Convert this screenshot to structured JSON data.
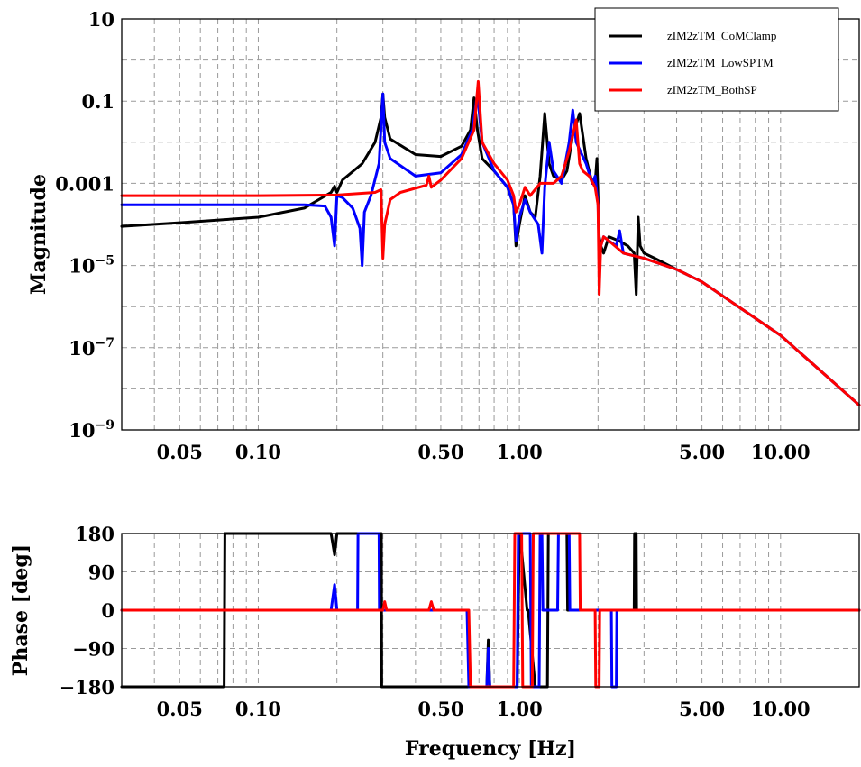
{
  "chart_data": [
    {
      "type": "line",
      "title": "",
      "xlabel": "",
      "ylabel": "Magnitude",
      "x_scale": "log",
      "y_scale": "log",
      "xlim": [
        0.03,
        20
      ],
      "ylim": [
        1e-09,
        10
      ],
      "x_ticks": [
        0.05,
        0.1,
        0.5,
        1.0,
        5.0,
        10.0
      ],
      "x_tick_labels": [
        "0.05",
        "0.10",
        "0.50",
        "1.00",
        "5.00",
        "10.00"
      ],
      "y_ticks": [
        1e-09,
        1e-07,
        1e-05,
        0.001,
        0.1,
        10
      ],
      "y_tick_labels": [
        {
          "base": "10",
          "exp": "−9"
        },
        {
          "base": "10",
          "exp": "−7"
        },
        {
          "base": "10",
          "exp": "−5"
        },
        {
          "base": "0.001",
          "exp": ""
        },
        {
          "base": "0.1",
          "exp": ""
        },
        {
          "base": "10",
          "exp": ""
        }
      ],
      "grid": true,
      "legend_position": "top-right",
      "series": [
        {
          "name": "zIM2zTM_CoMClamp",
          "color": "#000000",
          "x": [
            0.03,
            0.05,
            0.1,
            0.15,
            0.19,
            0.196,
            0.2,
            0.21,
            0.25,
            0.28,
            0.295,
            0.3,
            0.305,
            0.32,
            0.4,
            0.5,
            0.6,
            0.65,
            0.67,
            0.69,
            0.72,
            0.8,
            0.9,
            0.95,
            0.97,
            1.0,
            1.05,
            1.1,
            1.15,
            1.2,
            1.25,
            1.3,
            1.35,
            1.45,
            1.52,
            1.6,
            1.7,
            1.8,
            1.9,
            1.95,
            1.98,
            2.0,
            2.02,
            2.05,
            2.1,
            2.2,
            2.4,
            2.6,
            2.75,
            2.8,
            2.85,
            2.9,
            3.0,
            3.3,
            4,
            5,
            10,
            20
          ],
          "y": [
            9e-05,
            0.00011,
            0.00015,
            0.00025,
            0.0006,
            0.00085,
            0.0006,
            0.0012,
            0.003,
            0.01,
            0.04,
            0.15,
            0.04,
            0.012,
            0.005,
            0.0045,
            0.008,
            0.02,
            0.12,
            0.02,
            0.004,
            0.002,
            0.0008,
            0.0003,
            3e-05,
            0.0001,
            0.0005,
            0.0002,
            0.00015,
            0.0015,
            0.05,
            0.003,
            0.0015,
            0.0012,
            0.002,
            0.015,
            0.05,
            0.004,
            0.001,
            0.001,
            0.004,
            0.0005,
            5e-05,
            3e-05,
            2e-05,
            5e-05,
            4e-05,
            3e-05,
            2e-05,
            2e-06,
            0.00015,
            3e-05,
            2e-05,
            1.5e-05,
            8e-06,
            4e-06,
            2e-07,
            4e-09
          ]
        },
        {
          "name": "zIM2zTM_LowSPTM",
          "color": "#0000ff",
          "x": [
            0.03,
            0.1,
            0.15,
            0.18,
            0.19,
            0.196,
            0.2,
            0.21,
            0.23,
            0.245,
            0.25,
            0.255,
            0.27,
            0.29,
            0.3,
            0.305,
            0.32,
            0.4,
            0.5,
            0.6,
            0.66,
            0.69,
            0.72,
            0.8,
            0.9,
            0.95,
            0.97,
            1.0,
            1.05,
            1.1,
            1.18,
            1.22,
            1.25,
            1.3,
            1.35,
            1.45,
            1.55,
            1.6,
            1.65,
            1.8,
            1.9,
            1.95,
            2.0,
            2.02,
            2.05,
            2.1,
            2.2,
            2.35,
            2.42,
            2.5,
            3.0,
            4,
            5,
            10,
            20
          ],
          "y": [
            0.0003,
            0.0003,
            0.0003,
            0.00028,
            0.00015,
            3e-05,
            0.0005,
            0.00045,
            0.00025,
            8e-05,
            1e-05,
            0.0002,
            0.0005,
            0.003,
            0.15,
            0.01,
            0.004,
            0.0015,
            0.0018,
            0.005,
            0.02,
            0.15,
            0.01,
            0.002,
            0.0008,
            0.0003,
            4e-05,
            0.00015,
            0.0004,
            0.0002,
            0.0001,
            2e-05,
            0.0008,
            0.01,
            0.002,
            0.001,
            0.01,
            0.06,
            0.01,
            0.003,
            0.001,
            0.0015,
            0.0003,
            2e-05,
            3e-05,
            5e-05,
            4e-05,
            3e-05,
            7e-05,
            2e-05,
            1.5e-05,
            8e-06,
            4e-06,
            2e-07,
            4e-09
          ]
        },
        {
          "name": "zIM2zTM_BothSP",
          "color": "#ff0000",
          "x": [
            0.03,
            0.1,
            0.2,
            0.28,
            0.295,
            0.3,
            0.305,
            0.32,
            0.35,
            0.44,
            0.45,
            0.46,
            0.5,
            0.6,
            0.67,
            0.695,
            0.72,
            0.8,
            0.9,
            0.95,
            0.97,
            1.0,
            1.05,
            1.1,
            1.2,
            1.35,
            1.45,
            1.55,
            1.65,
            1.7,
            1.75,
            1.85,
            1.95,
            2.0,
            2.02,
            2.05,
            2.1,
            2.2,
            2.5,
            3.0,
            4,
            5,
            10,
            20
          ],
          "y": [
            0.0005,
            0.0005,
            0.00052,
            0.0006,
            0.0007,
            1.5e-05,
            0.0001,
            0.0004,
            0.0006,
            0.0009,
            0.0015,
            0.0008,
            0.0012,
            0.004,
            0.02,
            0.3,
            0.01,
            0.003,
            0.0012,
            0.0005,
            0.0002,
            0.0003,
            0.0008,
            0.0005,
            0.001,
            0.001,
            0.0015,
            0.006,
            0.035,
            0.003,
            0.002,
            0.0015,
            0.0008,
            0.0003,
            2e-06,
            3e-05,
            5e-05,
            4e-05,
            2e-05,
            1.5e-05,
            8e-06,
            4e-06,
            2e-07,
            4e-09
          ]
        }
      ]
    },
    {
      "type": "line",
      "title": "",
      "xlabel": "Frequency [Hz]",
      "ylabel": "Phase [deg]",
      "x_scale": "log",
      "xlim": [
        0.03,
        20
      ],
      "ylim": [
        -180,
        180
      ],
      "x_ticks": [
        0.05,
        0.1,
        0.5,
        1.0,
        5.0,
        10.0
      ],
      "x_tick_labels": [
        "0.05",
        "0.10",
        "0.50",
        "1.00",
        "5.00",
        "10.00"
      ],
      "y_ticks": [
        180,
        90,
        0,
        -90,
        -180
      ],
      "y_tick_labels": [
        "180",
        "90",
        "0",
        "−90",
        "−180"
      ],
      "grid": true,
      "series": [
        {
          "name": "zIM2zTM_CoMClamp",
          "color": "#000000",
          "x": [
            0.03,
            0.074,
            0.0745,
            0.19,
            0.196,
            0.2,
            0.296,
            0.297,
            0.62,
            0.64,
            0.68,
            0.695,
            0.72,
            0.75,
            0.76,
            0.77,
            0.9,
            0.98,
            1.0,
            1.005,
            1.07,
            1.08,
            1.15,
            1.16,
            1.28,
            1.29,
            1.52,
            1.53,
            2.75,
            2.76,
            2.8,
            2.81,
            20
          ],
          "y": [
            -180,
            -180,
            180,
            180,
            130,
            180,
            180,
            -180,
            -180,
            -180,
            -180,
            -180,
            -180,
            -180,
            -70,
            -180,
            -180,
            -180,
            180,
            180,
            0,
            0,
            -180,
            -180,
            -180,
            180,
            180,
            0,
            0,
            180,
            180,
            0,
            0
          ]
        },
        {
          "name": "zIM2zTM_LowSPTM",
          "color": "#0000ff",
          "x": [
            0.03,
            0.19,
            0.196,
            0.2,
            0.24,
            0.241,
            0.29,
            0.291,
            0.3,
            0.63,
            0.64,
            0.68,
            0.69,
            0.72,
            0.75,
            0.76,
            0.77,
            0.9,
            0.98,
            0.99,
            1.1,
            1.11,
            1.19,
            1.2,
            1.22,
            1.23,
            1.4,
            1.41,
            1.55,
            1.56,
            2.25,
            2.26,
            2.35,
            2.36,
            20
          ],
          "y": [
            0,
            0,
            60,
            0,
            0,
            180,
            180,
            0,
            0,
            0,
            -180,
            -180,
            -180,
            -180,
            -180,
            -90,
            -180,
            -180,
            -180,
            180,
            180,
            -180,
            -180,
            180,
            180,
            0,
            0,
            180,
            180,
            0,
            0,
            -180,
            -180,
            0,
            0
          ]
        },
        {
          "name": "zIM2zTM_BothSP",
          "color": "#ff0000",
          "x": [
            0.03,
            0.2,
            0.3,
            0.305,
            0.31,
            0.45,
            0.46,
            0.47,
            0.64,
            0.65,
            0.69,
            0.695,
            0.72,
            0.8,
            0.95,
            0.96,
            1.02,
            1.03,
            1.12,
            1.13,
            1.3,
            1.31,
            1.7,
            1.71,
            1.95,
            1.96,
            2.02,
            2.03,
            20
          ],
          "y": [
            0,
            0,
            0,
            20,
            0,
            0,
            20,
            0,
            0,
            -180,
            -180,
            -180,
            -180,
            -180,
            -180,
            180,
            180,
            -180,
            -180,
            180,
            180,
            180,
            180,
            0,
            0,
            -180,
            -180,
            0,
            0
          ]
        }
      ]
    }
  ]
}
